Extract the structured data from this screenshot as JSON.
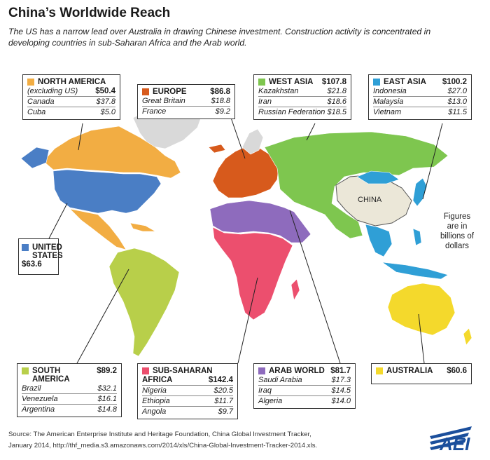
{
  "title": "China’s Worldwide Reach",
  "subtitle": "The US has a narrow lead over Australia in drawing Chinese investment. Construction activity is concentrated in developing countries in sub-Saharan Africa and the Arab world.",
  "china_label": "CHINA",
  "figures_note": [
    "Figures",
    "are in",
    "billions of",
    "dollars"
  ],
  "colors": {
    "north_america": "#f2ad43",
    "europe": "#d75a1c",
    "west_asia": "#7ec64f",
    "east_asia": "#2f9fd6",
    "united_states": "#4a7ec5",
    "south_america": "#b8cf4a",
    "sub_saharan_africa": "#ec4f6e",
    "arab_world": "#8e6bbd",
    "australia": "#f4d92c",
    "china": "#ebe7d8",
    "no_data": "#d9d9d9"
  },
  "regions": {
    "north_america": {
      "name": "NORTH AMERICA",
      "sub_label": "(excluding US)",
      "total": "$50.4",
      "rows": [
        {
          "country": "Canada",
          "value": "$37.8"
        },
        {
          "country": "Cuba",
          "value": "$5.0"
        }
      ]
    },
    "europe": {
      "name": "EUROPE",
      "total": "$86.8",
      "rows": [
        {
          "country": "Great Britain",
          "value": "$18.8"
        },
        {
          "country": "France",
          "value": "$9.2"
        }
      ]
    },
    "west_asia": {
      "name": "WEST ASIA",
      "total": "$107.8",
      "rows": [
        {
          "country": "Kazakhstan",
          "value": "$21.8"
        },
        {
          "country": "Iran",
          "value": "$18.6"
        },
        {
          "country": "Russian Federation",
          "value": "$18.5"
        }
      ]
    },
    "east_asia": {
      "name": "EAST ASIA",
      "total": "$100.2",
      "rows": [
        {
          "country": "Indonesia",
          "value": "$27.0"
        },
        {
          "country": "Malaysia",
          "value": "$13.0"
        },
        {
          "country": "Vietnam",
          "value": "$11.5"
        }
      ]
    },
    "united_states": {
      "name_line1": "UNITED",
      "name_line2": "STATES",
      "total": "$63.6"
    },
    "south_america": {
      "name": "SOUTH AMERICA",
      "total": "$89.2",
      "rows": [
        {
          "country": "Brazil",
          "value": "$32.1"
        },
        {
          "country": "Venezuela",
          "value": "$16.1"
        },
        {
          "country": "Argentina",
          "value": "$14.8"
        }
      ]
    },
    "sub_saharan_africa": {
      "name_line1": "SUB-SAHARAN",
      "name_line2": "AFRICA",
      "total": "$142.4",
      "rows": [
        {
          "country": "Nigeria",
          "value": "$20.5"
        },
        {
          "country": "Ethiopia",
          "value": "$11.7"
        },
        {
          "country": "Angola",
          "value": "$9.7"
        }
      ]
    },
    "arab_world": {
      "name": "ARAB WORLD",
      "total": "$81.7",
      "rows": [
        {
          "country": "Saudi Arabia",
          "value": "$17.3"
        },
        {
          "country": "Iraq",
          "value": "$14.5"
        },
        {
          "country": "Algeria",
          "value": "$14.0"
        }
      ]
    },
    "australia": {
      "name": "AUSTRALIA",
      "total": "$60.6"
    }
  },
  "source_line1": "Source: The American Enterprise Institute and Heritage Foundation, China Global Investment Tracker,",
  "source_line2": "January 2014, http://thf_media.s3.amazonaws.com/2014/xls/China-Global-Investment-Tracker-2014.xls.",
  "logo_text": "AEI"
}
